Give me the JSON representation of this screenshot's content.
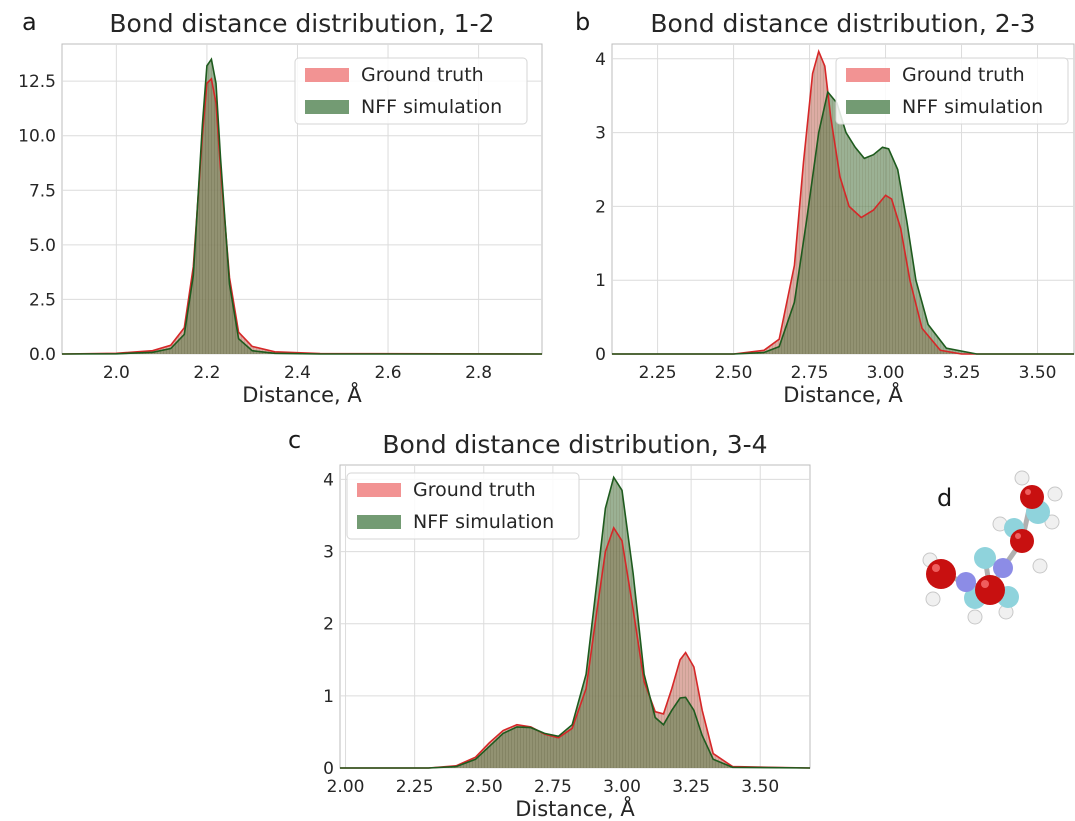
{
  "panel_labels": [
    "a",
    "b",
    "c",
    "d"
  ],
  "colors": {
    "ground_truth_line": "#d62728",
    "ground_truth_fill": "#f08080",
    "nff_line": "#1e5b1e",
    "nff_fill": "#5a8a5a",
    "grid": "#dcdcdc",
    "axis": "#bcbcbc"
  },
  "chart_data": [
    {
      "type": "area",
      "panel": "a",
      "title": "Bond distance distribution, 1-2",
      "xlabel": "Distance, Å",
      "ylabel": "",
      "xlim": [
        1.88,
        2.94
      ],
      "ylim": [
        0,
        14.2
      ],
      "xticks": [
        2.0,
        2.2,
        2.4,
        2.6,
        2.8
      ],
      "xtick_labels": [
        "2.0",
        "2.2",
        "2.4",
        "2.6",
        "2.8"
      ],
      "yticks": [
        0,
        2.5,
        5,
        7.5,
        10,
        12.5
      ],
      "ytick_labels": [
        "0.0",
        "2.5",
        "5.0",
        "7.5",
        "10.0",
        "12.5"
      ],
      "grid": true,
      "legend_placement": "top-right",
      "series": [
        {
          "name": "Ground truth",
          "x": [
            1.88,
            2.0,
            2.08,
            2.12,
            2.15,
            2.17,
            2.19,
            2.2,
            2.21,
            2.22,
            2.23,
            2.25,
            2.27,
            2.3,
            2.35,
            2.45,
            2.94
          ],
          "y": [
            0,
            0.03,
            0.15,
            0.4,
            1.2,
            4.0,
            10.0,
            12.4,
            12.6,
            11.5,
            8.5,
            3.5,
            1.0,
            0.35,
            0.1,
            0.02,
            0
          ]
        },
        {
          "name": "NFF simulation",
          "x": [
            1.88,
            2.0,
            2.08,
            2.12,
            2.15,
            2.17,
            2.19,
            2.2,
            2.21,
            2.22,
            2.23,
            2.25,
            2.27,
            2.3,
            2.35,
            2.45,
            2.94
          ],
          "y": [
            0,
            0.01,
            0.08,
            0.25,
            0.9,
            3.6,
            10.5,
            13.2,
            13.5,
            12.4,
            9.0,
            3.2,
            0.7,
            0.15,
            0.03,
            0,
            0
          ]
        }
      ]
    },
    {
      "type": "area",
      "panel": "b",
      "title": "Bond distance distribution, 2-3",
      "xlabel": "Distance, Å",
      "ylabel": "",
      "xlim": [
        2.1,
        3.62
      ],
      "ylim": [
        0,
        4.2
      ],
      "xticks": [
        2.25,
        2.5,
        2.75,
        3.0,
        3.25,
        3.5
      ],
      "xtick_labels": [
        "2.25",
        "2.50",
        "2.75",
        "3.00",
        "3.25",
        "3.50"
      ],
      "yticks": [
        0,
        1,
        2,
        3,
        4
      ],
      "ytick_labels": [
        "0",
        "1",
        "2",
        "3",
        "4"
      ],
      "grid": true,
      "legend_placement": "top-right",
      "series": [
        {
          "name": "Ground truth",
          "x": [
            2.1,
            2.5,
            2.6,
            2.65,
            2.7,
            2.73,
            2.76,
            2.78,
            2.8,
            2.82,
            2.85,
            2.88,
            2.92,
            2.96,
            3.0,
            3.02,
            3.05,
            3.08,
            3.12,
            3.18,
            3.25,
            3.62
          ],
          "y": [
            0,
            0.0,
            0.05,
            0.2,
            1.2,
            2.6,
            3.8,
            4.1,
            3.9,
            3.2,
            2.4,
            2.0,
            1.85,
            1.95,
            2.15,
            2.1,
            1.7,
            1.0,
            0.35,
            0.05,
            0,
            0
          ]
        },
        {
          "name": "NFF simulation",
          "x": [
            2.1,
            2.5,
            2.6,
            2.65,
            2.7,
            2.74,
            2.78,
            2.81,
            2.84,
            2.87,
            2.9,
            2.93,
            2.96,
            2.99,
            3.01,
            3.04,
            3.07,
            3.1,
            3.14,
            3.2,
            3.3,
            3.62
          ],
          "y": [
            0,
            0.0,
            0.02,
            0.1,
            0.7,
            1.8,
            3.0,
            3.55,
            3.4,
            3.0,
            2.8,
            2.65,
            2.7,
            2.8,
            2.78,
            2.5,
            1.8,
            1.0,
            0.4,
            0.08,
            0,
            0
          ]
        }
      ]
    },
    {
      "type": "area",
      "panel": "c",
      "title": "Bond distance distribution, 3-4",
      "xlabel": "Distance, Å",
      "ylabel": "",
      "xlim": [
        1.98,
        3.68
      ],
      "ylim": [
        0,
        4.2
      ],
      "xticks": [
        2.0,
        2.25,
        2.5,
        2.75,
        3.0,
        3.25,
        3.5
      ],
      "xtick_labels": [
        "2.00",
        "2.25",
        "2.50",
        "2.75",
        "3.00",
        "3.25",
        "3.50"
      ],
      "yticks": [
        0,
        1,
        2,
        3,
        4
      ],
      "ytick_labels": [
        "0",
        "1",
        "2",
        "3",
        "4"
      ],
      "grid": true,
      "legend_placement": "top-left",
      "series": [
        {
          "name": "Ground truth",
          "x": [
            1.98,
            2.3,
            2.4,
            2.47,
            2.52,
            2.57,
            2.62,
            2.67,
            2.72,
            2.77,
            2.82,
            2.87,
            2.91,
            2.94,
            2.97,
            3.0,
            3.04,
            3.08,
            3.12,
            3.15,
            3.18,
            3.21,
            3.23,
            3.26,
            3.29,
            3.33,
            3.4,
            3.68
          ],
          "y": [
            0,
            0,
            0.03,
            0.15,
            0.35,
            0.52,
            0.6,
            0.57,
            0.47,
            0.42,
            0.55,
            1.1,
            2.2,
            3.0,
            3.33,
            3.15,
            2.2,
            1.2,
            0.78,
            0.75,
            1.1,
            1.5,
            1.6,
            1.4,
            0.8,
            0.2,
            0.02,
            0
          ]
        },
        {
          "name": "NFF simulation",
          "x": [
            1.98,
            2.3,
            2.4,
            2.47,
            2.52,
            2.57,
            2.62,
            2.67,
            2.72,
            2.77,
            2.82,
            2.87,
            2.91,
            2.94,
            2.97,
            3.0,
            3.04,
            3.08,
            3.12,
            3.15,
            3.18,
            3.21,
            3.23,
            3.26,
            3.29,
            3.33,
            3.4,
            3.68
          ],
          "y": [
            0,
            0,
            0.02,
            0.12,
            0.3,
            0.48,
            0.57,
            0.56,
            0.48,
            0.44,
            0.6,
            1.3,
            2.6,
            3.6,
            4.03,
            3.85,
            2.7,
            1.3,
            0.7,
            0.6,
            0.8,
            0.97,
            0.98,
            0.8,
            0.45,
            0.12,
            0.01,
            0
          ]
        }
      ]
    }
  ],
  "molecule": {
    "atoms": [
      {
        "type": "O",
        "color": "#d41414"
      },
      {
        "type": "N",
        "color": "#8c8ce6"
      },
      {
        "type": "C",
        "color": "#8cd2dc"
      },
      {
        "type": "H",
        "color": "#f2f2f2"
      }
    ]
  }
}
